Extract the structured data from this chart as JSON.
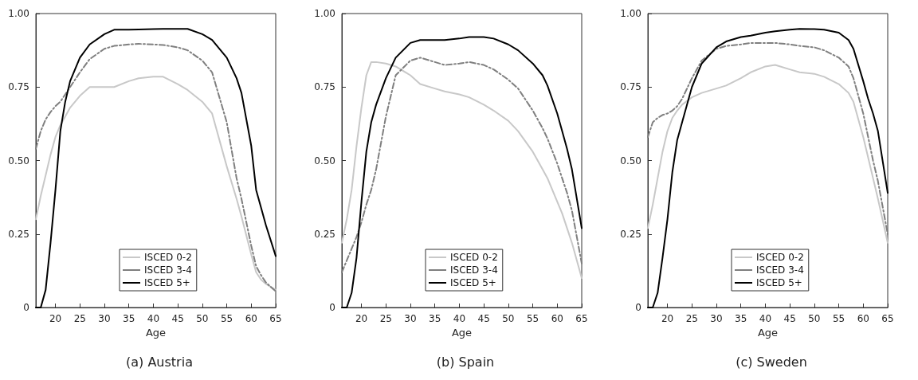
{
  "chart_data": [
    {
      "type": "line",
      "title": "(a) Austria",
      "xlabel": "Age",
      "xlim": [
        16,
        65
      ],
      "xticks": [
        20,
        25,
        30,
        35,
        40,
        45,
        50,
        55,
        60,
        65
      ],
      "ylim": [
        0,
        1
      ],
      "yticks": [
        {
          "value": 0,
          "label": "0"
        },
        {
          "value": 0.25,
          "label": "0.25"
        },
        {
          "value": 0.5,
          "label": "0.50"
        },
        {
          "value": 0.75,
          "label": "0.75"
        },
        {
          "value": 1,
          "label": "1.00"
        }
      ],
      "grid": false,
      "legend": "bottom",
      "marker": "none",
      "x": [
        16,
        17,
        18,
        19,
        20,
        21,
        22,
        23,
        25,
        27,
        30,
        32,
        35,
        37,
        40,
        42,
        45,
        47,
        50,
        52,
        55,
        57,
        58,
        60,
        61,
        62,
        63,
        65
      ],
      "series": [
        {
          "name": "ISCED 0-2",
          "color": "#c8c8c8",
          "line_style": "solid",
          "values": [
            0.3,
            0.38,
            0.45,
            0.52,
            0.58,
            0.62,
            0.65,
            0.68,
            0.72,
            0.75,
            0.75,
            0.75,
            0.77,
            0.78,
            0.785,
            0.785,
            0.76,
            0.74,
            0.7,
            0.66,
            0.48,
            0.37,
            0.31,
            0.18,
            0.12,
            0.095,
            0.08,
            0.06
          ]
        },
        {
          "name": "ISCED 3-4",
          "color": "#7f7f7f",
          "line_style": "dashed",
          "values": [
            0.54,
            0.6,
            0.64,
            0.665,
            0.685,
            0.7,
            0.725,
            0.75,
            0.8,
            0.845,
            0.88,
            0.89,
            0.895,
            0.897,
            0.895,
            0.893,
            0.885,
            0.875,
            0.84,
            0.8,
            0.63,
            0.44,
            0.37,
            0.21,
            0.14,
            0.11,
            0.085,
            0.055
          ]
        },
        {
          "name": "ISCED 5+",
          "color": "#000000",
          "line_style": "solid",
          "values": [
            0,
            0,
            0.06,
            0.22,
            0.4,
            0.6,
            0.7,
            0.77,
            0.85,
            0.895,
            0.93,
            0.945,
            0.945,
            0.946,
            0.947,
            0.948,
            0.948,
            0.948,
            0.93,
            0.91,
            0.85,
            0.78,
            0.73,
            0.55,
            0.4,
            0.34,
            0.28,
            0.175
          ]
        }
      ]
    },
    {
      "type": "line",
      "title": "(b) Spain",
      "xlabel": "Age",
      "xlim": [
        16,
        65
      ],
      "xticks": [
        20,
        25,
        30,
        35,
        40,
        45,
        50,
        55,
        60,
        65
      ],
      "ylim": [
        0,
        1
      ],
      "yticks": [
        {
          "value": 0,
          "label": "0"
        },
        {
          "value": 0.25,
          "label": "0.25"
        },
        {
          "value": 0.5,
          "label": "0.50"
        },
        {
          "value": 0.75,
          "label": "0.75"
        },
        {
          "value": 1,
          "label": "1.00"
        }
      ],
      "grid": false,
      "legend": "bottom",
      "marker": "none",
      "x": [
        16,
        17,
        18,
        19,
        20,
        21,
        22,
        23,
        25,
        27,
        30,
        32,
        35,
        37,
        40,
        42,
        45,
        47,
        50,
        52,
        55,
        57,
        58,
        60,
        61,
        62,
        63,
        65
      ],
      "series": [
        {
          "name": "ISCED 0-2",
          "color": "#c8c8c8",
          "line_style": "solid",
          "values": [
            0.22,
            0.3,
            0.4,
            0.55,
            0.68,
            0.79,
            0.835,
            0.835,
            0.83,
            0.82,
            0.79,
            0.76,
            0.745,
            0.735,
            0.725,
            0.715,
            0.69,
            0.67,
            0.635,
            0.6,
            0.53,
            0.47,
            0.44,
            0.36,
            0.32,
            0.27,
            0.22,
            0.1
          ]
        },
        {
          "name": "ISCED 3-4",
          "color": "#7f7f7f",
          "line_style": "dashed",
          "values": [
            0.12,
            0.16,
            0.2,
            0.24,
            0.29,
            0.35,
            0.4,
            0.47,
            0.65,
            0.79,
            0.84,
            0.85,
            0.835,
            0.825,
            0.83,
            0.835,
            0.825,
            0.81,
            0.775,
            0.745,
            0.67,
            0.61,
            0.575,
            0.49,
            0.44,
            0.39,
            0.33,
            0.15
          ]
        },
        {
          "name": "ISCED 5+",
          "color": "#000000",
          "line_style": "solid",
          "values": [
            0,
            0,
            0.05,
            0.17,
            0.36,
            0.53,
            0.63,
            0.69,
            0.78,
            0.85,
            0.9,
            0.91,
            0.91,
            0.91,
            0.915,
            0.92,
            0.92,
            0.915,
            0.895,
            0.875,
            0.83,
            0.79,
            0.755,
            0.66,
            0.6,
            0.54,
            0.47,
            0.27
          ]
        }
      ]
    },
    {
      "type": "line",
      "title": "(c) Sweden",
      "xlabel": "Age",
      "xlim": [
        16,
        65
      ],
      "xticks": [
        20,
        25,
        30,
        35,
        40,
        45,
        50,
        55,
        60,
        65
      ],
      "ylim": [
        0,
        1
      ],
      "yticks": [
        {
          "value": 0,
          "label": "0"
        },
        {
          "value": 0.25,
          "label": "0.25"
        },
        {
          "value": 0.5,
          "label": "0.50"
        },
        {
          "value": 0.75,
          "label": "0.75"
        },
        {
          "value": 1,
          "label": "1.00"
        }
      ],
      "grid": false,
      "legend": "bottom",
      "marker": "none",
      "x": [
        16,
        17,
        18,
        19,
        20,
        21,
        22,
        23,
        25,
        27,
        30,
        32,
        35,
        37,
        40,
        42,
        45,
        47,
        50,
        52,
        55,
        57,
        58,
        60,
        61,
        62,
        63,
        65
      ],
      "series": [
        {
          "name": "ISCED 0-2",
          "color": "#c8c8c8",
          "line_style": "solid",
          "values": [
            0.27,
            0.35,
            0.44,
            0.53,
            0.6,
            0.645,
            0.67,
            0.69,
            0.715,
            0.73,
            0.745,
            0.755,
            0.78,
            0.8,
            0.82,
            0.825,
            0.81,
            0.8,
            0.795,
            0.785,
            0.76,
            0.73,
            0.7,
            0.58,
            0.51,
            0.44,
            0.37,
            0.22
          ]
        },
        {
          "name": "ISCED 3-4",
          "color": "#7f7f7f",
          "line_style": "dashed",
          "values": [
            0.58,
            0.63,
            0.645,
            0.655,
            0.66,
            0.67,
            0.685,
            0.71,
            0.78,
            0.84,
            0.88,
            0.89,
            0.895,
            0.9,
            0.9,
            0.9,
            0.895,
            0.89,
            0.885,
            0.875,
            0.85,
            0.82,
            0.78,
            0.66,
            0.58,
            0.5,
            0.43,
            0.25
          ]
        },
        {
          "name": "ISCED 5+",
          "color": "#000000",
          "line_style": "solid",
          "values": [
            0,
            0,
            0.05,
            0.17,
            0.3,
            0.46,
            0.57,
            0.63,
            0.75,
            0.83,
            0.885,
            0.905,
            0.92,
            0.925,
            0.935,
            0.94,
            0.945,
            0.948,
            0.947,
            0.945,
            0.935,
            0.91,
            0.88,
            0.77,
            0.71,
            0.66,
            0.6,
            0.39
          ]
        }
      ]
    }
  ]
}
